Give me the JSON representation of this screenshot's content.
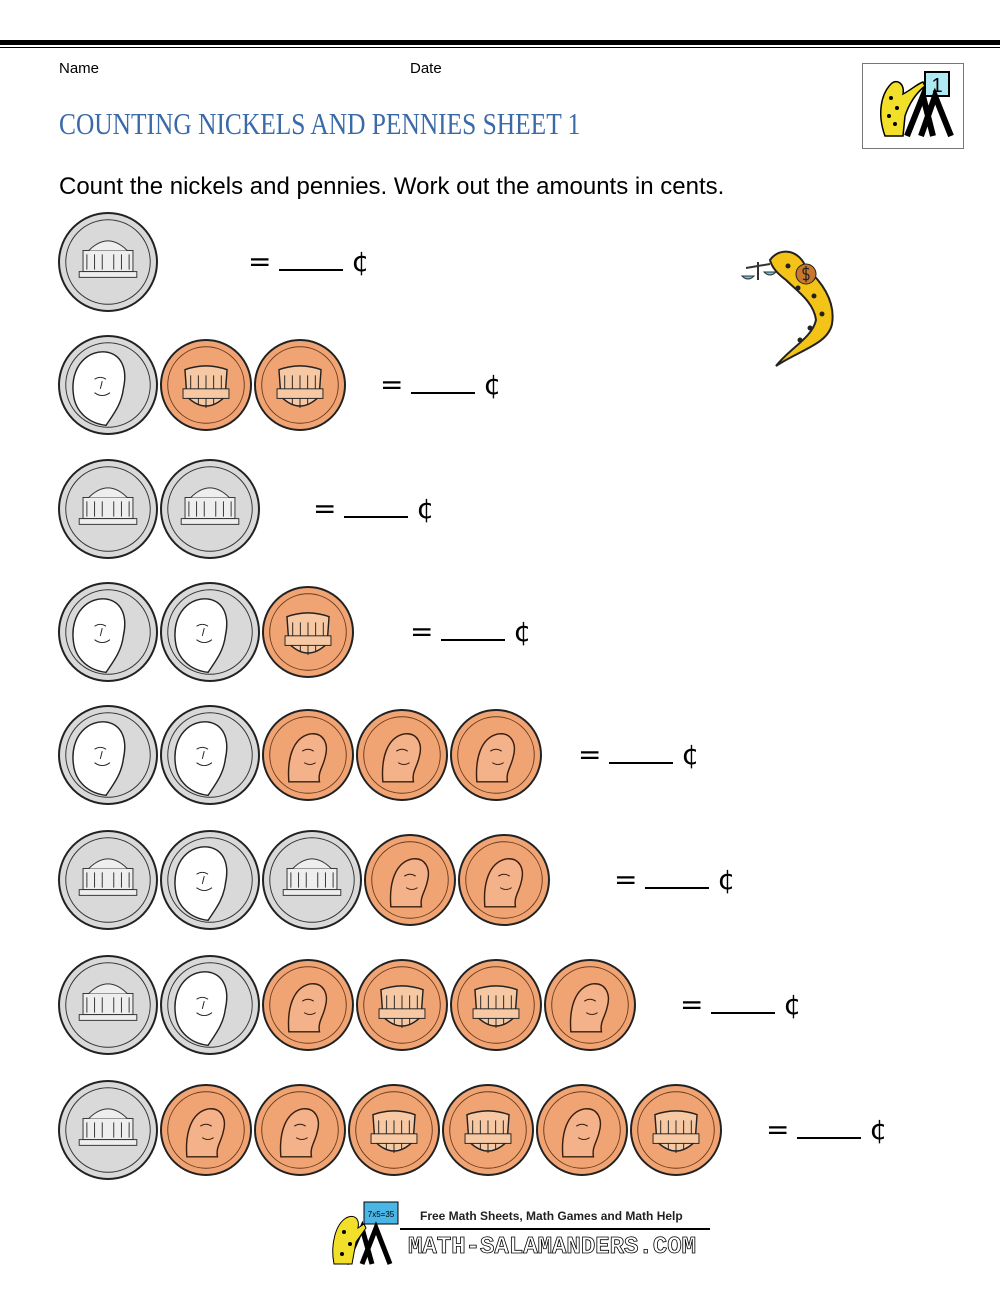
{
  "header": {
    "name_label": "Name",
    "date_label": "Date",
    "title": "COUNTING NICKELS AND PENNIES SHEET 1",
    "logo_text": "1"
  },
  "instructions": "Count the nickels and pennies. Work out the amounts in cents.",
  "answer": {
    "equals": "=",
    "cent_symbol": "¢"
  },
  "colors": {
    "title": "#3a6aa8",
    "penny": "#f0a474",
    "nickel": "#d9d9d9"
  },
  "rows": [
    {
      "coins": [
        "nickel-monticello"
      ]
    },
    {
      "coins": [
        "nickel-jefferson",
        "penny-shield",
        "penny-shield"
      ]
    },
    {
      "coins": [
        "nickel-monticello",
        "nickel-monticello"
      ]
    },
    {
      "coins": [
        "nickel-jefferson",
        "nickel-jefferson",
        "penny-shield"
      ]
    },
    {
      "coins": [
        "nickel-jefferson",
        "nickel-jefferson",
        "penny-lincoln",
        "penny-lincoln",
        "penny-lincoln"
      ]
    },
    {
      "coins": [
        "nickel-monticello",
        "nickel-jefferson",
        "nickel-monticello",
        "penny-lincoln",
        "penny-lincoln"
      ]
    },
    {
      "coins": [
        "nickel-monticello",
        "nickel-jefferson",
        "penny-lincoln",
        "penny-shield",
        "penny-shield",
        "penny-lincoln"
      ]
    },
    {
      "coins": [
        "nickel-monticello",
        "penny-lincoln",
        "penny-lincoln",
        "penny-shield",
        "penny-shield",
        "penny-lincoln",
        "penny-shield"
      ]
    }
  ],
  "footer": {
    "tagline": "Free Math Sheets, Math Games and Math Help",
    "site": "MATH-SALAMANDERS.COM",
    "board_text": "7x5=35"
  }
}
